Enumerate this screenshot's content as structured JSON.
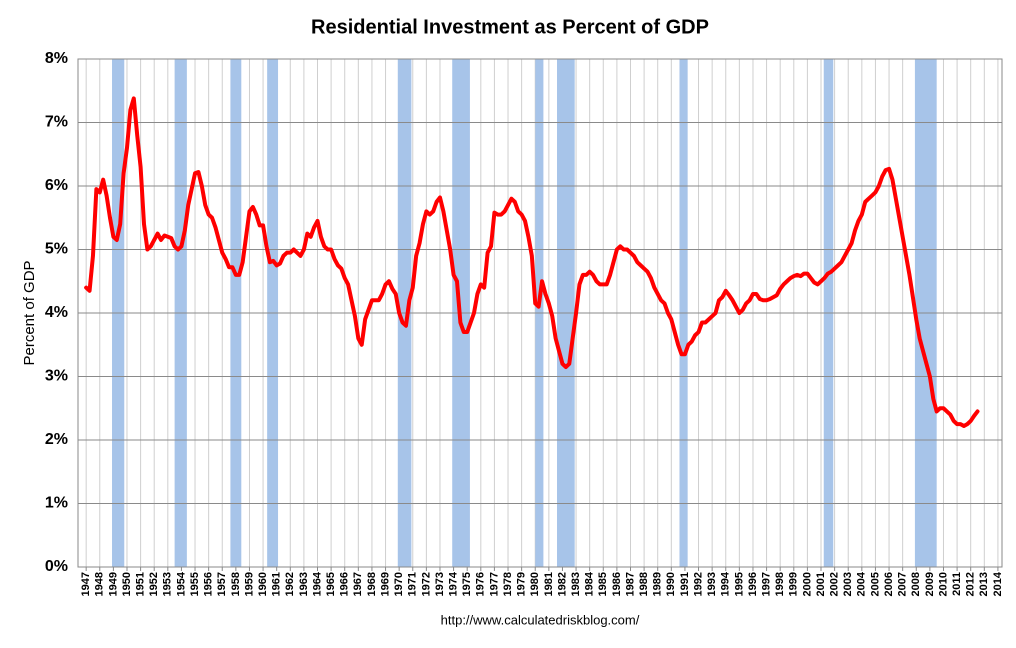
{
  "chart_data": {
    "type": "line",
    "title": "Residential Investment as Percent of GDP",
    "ylabel": "Percent of GDP",
    "footer": "http://www.calculatedriskblog.com/",
    "color": "#ff0000",
    "band_color": "#a7c4e9",
    "grid": true,
    "xlim": [
      1946.4,
      2014.3
    ],
    "ylim": [
      0,
      8
    ],
    "yticks": [
      {
        "value": 0,
        "label": "0%"
      },
      {
        "value": 1,
        "label": "1%"
      },
      {
        "value": 2,
        "label": "2%"
      },
      {
        "value": 3,
        "label": "3%"
      },
      {
        "value": 4,
        "label": "4%"
      },
      {
        "value": 5,
        "label": "5%"
      },
      {
        "value": 6,
        "label": "6%"
      },
      {
        "value": 7,
        "label": "7%"
      },
      {
        "value": 8,
        "label": "8%"
      }
    ],
    "xticks": [
      1947,
      1948,
      1949,
      1950,
      1951,
      1952,
      1953,
      1954,
      1955,
      1956,
      1957,
      1958,
      1959,
      1960,
      1961,
      1962,
      1963,
      1964,
      1965,
      1966,
      1967,
      1968,
      1969,
      1970,
      1971,
      1972,
      1973,
      1974,
      1975,
      1976,
      1977,
      1978,
      1979,
      1980,
      1981,
      1982,
      1983,
      1984,
      1985,
      1986,
      1987,
      1988,
      1989,
      1990,
      1991,
      1992,
      1993,
      1994,
      1995,
      1996,
      1997,
      1998,
      1999,
      2000,
      2001,
      2002,
      2003,
      2004,
      2005,
      2006,
      2007,
      2008,
      2009,
      2010,
      2011,
      2012,
      2013,
      2014
    ],
    "recessions": [
      [
        1948.9,
        1949.8
      ],
      [
        1953.5,
        1954.4
      ],
      [
        1957.6,
        1958.4
      ],
      [
        1960.3,
        1961.1
      ],
      [
        1969.9,
        1970.9
      ],
      [
        1973.9,
        1975.2
      ],
      [
        1980.0,
        1980.6
      ],
      [
        1981.6,
        1982.9
      ],
      [
        1990.6,
        1991.2
      ],
      [
        2001.2,
        2001.9
      ],
      [
        2007.9,
        2009.5
      ]
    ],
    "x": [
      1947,
      1947.25,
      1947.5,
      1947.75,
      1948,
      1948.25,
      1948.5,
      1948.75,
      1949,
      1949.25,
      1949.5,
      1949.75,
      1950,
      1950.25,
      1950.5,
      1950.75,
      1951,
      1951.25,
      1951.5,
      1951.75,
      1952,
      1952.25,
      1952.5,
      1952.75,
      1953,
      1953.25,
      1953.5,
      1953.75,
      1954,
      1954.25,
      1954.5,
      1954.75,
      1955,
      1955.25,
      1955.5,
      1955.75,
      1956,
      1956.25,
      1956.5,
      1956.75,
      1957,
      1957.25,
      1957.5,
      1957.75,
      1958,
      1958.25,
      1958.5,
      1958.75,
      1959,
      1959.25,
      1959.5,
      1959.75,
      1960,
      1960.25,
      1960.5,
      1960.75,
      1961,
      1961.25,
      1961.5,
      1961.75,
      1962,
      1962.25,
      1962.5,
      1962.75,
      1963,
      1963.25,
      1963.5,
      1963.75,
      1964,
      1964.25,
      1964.5,
      1964.75,
      1965,
      1965.25,
      1965.5,
      1965.75,
      1966,
      1966.25,
      1966.5,
      1966.75,
      1967,
      1967.25,
      1967.5,
      1967.75,
      1968,
      1968.25,
      1968.5,
      1968.75,
      1969,
      1969.25,
      1969.5,
      1969.75,
      1970,
      1970.25,
      1970.5,
      1970.75,
      1971,
      1971.25,
      1971.5,
      1971.75,
      1972,
      1972.25,
      1972.5,
      1972.75,
      1973,
      1973.25,
      1973.5,
      1973.75,
      1974,
      1974.25,
      1974.5,
      1974.75,
      1975,
      1975.25,
      1975.5,
      1975.75,
      1976,
      1976.25,
      1976.5,
      1976.75,
      1977,
      1977.25,
      1977.5,
      1977.75,
      1978,
      1978.25,
      1978.5,
      1978.75,
      1979,
      1979.25,
      1979.5,
      1979.75,
      1980,
      1980.25,
      1980.5,
      1980.75,
      1981,
      1981.25,
      1981.5,
      1981.75,
      1982,
      1982.25,
      1982.5,
      1982.75,
      1983,
      1983.25,
      1983.5,
      1983.75,
      1984,
      1984.25,
      1984.5,
      1984.75,
      1985,
      1985.25,
      1985.5,
      1985.75,
      1986,
      1986.25,
      1986.5,
      1986.75,
      1987,
      1987.25,
      1987.5,
      1987.75,
      1988,
      1988.25,
      1988.5,
      1988.75,
      1989,
      1989.25,
      1989.5,
      1989.75,
      1990,
      1990.25,
      1990.5,
      1990.75,
      1991,
      1991.25,
      1991.5,
      1991.75,
      1992,
      1992.25,
      1992.5,
      1992.75,
      1993,
      1993.25,
      1993.5,
      1993.75,
      1994,
      1994.25,
      1994.5,
      1994.75,
      1995,
      1995.25,
      1995.5,
      1995.75,
      1996,
      1996.25,
      1996.5,
      1996.75,
      1997,
      1997.25,
      1997.5,
      1997.75,
      1998,
      1998.25,
      1998.5,
      1998.75,
      1999,
      1999.25,
      1999.5,
      1999.75,
      2000,
      2000.25,
      2000.5,
      2000.75,
      2001,
      2001.25,
      2001.5,
      2001.75,
      2002,
      2002.25,
      2002.5,
      2002.75,
      2003,
      2003.25,
      2003.5,
      2003.75,
      2004,
      2004.25,
      2004.5,
      2004.75,
      2005,
      2005.25,
      2005.5,
      2005.75,
      2006,
      2006.25,
      2006.5,
      2006.75,
      2007,
      2007.25,
      2007.5,
      2007.75,
      2008,
      2008.25,
      2008.5,
      2008.75,
      2009,
      2009.25,
      2009.5,
      2009.75,
      2010,
      2010.25,
      2010.5,
      2010.75,
      2011,
      2011.25,
      2011.5,
      2011.75,
      2012,
      2012.25,
      2012.5
    ],
    "values": [
      4.4,
      4.35,
      4.9,
      5.95,
      5.9,
      6.1,
      5.85,
      5.5,
      5.2,
      5.15,
      5.4,
      6.2,
      6.6,
      7.2,
      7.38,
      6.8,
      6.3,
      5.4,
      5.0,
      5.05,
      5.15,
      5.25,
      5.15,
      5.22,
      5.2,
      5.18,
      5.05,
      5.0,
      5.05,
      5.3,
      5.7,
      5.95,
      6.2,
      6.22,
      6.0,
      5.7,
      5.55,
      5.5,
      5.35,
      5.15,
      4.95,
      4.85,
      4.72,
      4.72,
      4.6,
      4.6,
      4.8,
      5.2,
      5.6,
      5.67,
      5.55,
      5.38,
      5.38,
      5.05,
      4.8,
      4.82,
      4.75,
      4.78,
      4.9,
      4.95,
      4.95,
      5.0,
      4.95,
      4.9,
      5.0,
      5.25,
      5.2,
      5.35,
      5.45,
      5.2,
      5.05,
      5.0,
      5.0,
      4.85,
      4.75,
      4.7,
      4.55,
      4.45,
      4.2,
      3.95,
      3.6,
      3.5,
      3.9,
      4.05,
      4.2,
      4.2,
      4.2,
      4.3,
      4.45,
      4.5,
      4.38,
      4.3,
      4.0,
      3.85,
      3.8,
      4.2,
      4.4,
      4.9,
      5.1,
      5.4,
      5.6,
      5.55,
      5.6,
      5.75,
      5.82,
      5.6,
      5.3,
      5.0,
      4.6,
      4.5,
      3.85,
      3.7,
      3.7,
      3.85,
      4.0,
      4.3,
      4.45,
      4.4,
      4.95,
      5.05,
      5.58,
      5.55,
      5.55,
      5.6,
      5.7,
      5.8,
      5.75,
      5.6,
      5.55,
      5.45,
      5.2,
      4.9,
      4.15,
      4.1,
      4.5,
      4.3,
      4.15,
      3.95,
      3.6,
      3.4,
      3.2,
      3.15,
      3.2,
      3.6,
      4.0,
      4.45,
      4.6,
      4.6,
      4.65,
      4.6,
      4.5,
      4.45,
      4.45,
      4.45,
      4.6,
      4.8,
      5.0,
      5.05,
      5.0,
      5.0,
      4.95,
      4.9,
      4.8,
      4.75,
      4.7,
      4.65,
      4.55,
      4.4,
      4.3,
      4.2,
      4.15,
      4.0,
      3.9,
      3.7,
      3.5,
      3.35,
      3.35,
      3.5,
      3.55,
      3.65,
      3.7,
      3.85,
      3.85,
      3.9,
      3.95,
      4.0,
      4.2,
      4.25,
      4.35,
      4.28,
      4.2,
      4.1,
      4.0,
      4.05,
      4.15,
      4.2,
      4.3,
      4.3,
      4.22,
      4.2,
      4.2,
      4.22,
      4.25,
      4.28,
      4.38,
      4.45,
      4.5,
      4.55,
      4.58,
      4.6,
      4.58,
      4.62,
      4.62,
      4.55,
      4.48,
      4.45,
      4.5,
      4.55,
      4.62,
      4.65,
      4.7,
      4.75,
      4.8,
      4.9,
      5.0,
      5.1,
      5.3,
      5.45,
      5.55,
      5.75,
      5.8,
      5.85,
      5.9,
      6.0,
      6.15,
      6.25,
      6.27,
      6.1,
      5.8,
      5.5,
      5.2,
      4.9,
      4.6,
      4.25,
      3.9,
      3.6,
      3.4,
      3.2,
      3.0,
      2.65,
      2.45,
      2.5,
      2.5,
      2.45,
      2.4,
      2.3,
      2.25,
      2.25,
      2.22,
      2.25,
      2.3,
      2.38,
      2.45
    ]
  }
}
